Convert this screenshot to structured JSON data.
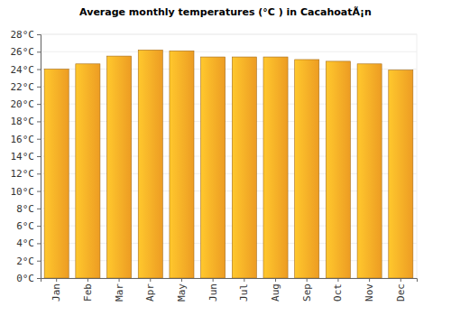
{
  "chart_data": {
    "type": "bar",
    "title": "Average monthly temperatures (°C ) in CacahoatÃ¡n",
    "categories": [
      "Jan",
      "Feb",
      "Mar",
      "Apr",
      "May",
      "Jun",
      "Jul",
      "Aug",
      "Sep",
      "Oct",
      "Nov",
      "Dec"
    ],
    "values": [
      24.0,
      24.6,
      25.5,
      26.2,
      26.1,
      25.4,
      25.4,
      25.4,
      25.1,
      24.9,
      24.6,
      23.9
    ],
    "color": "#ffa726",
    "ylim": [
      0,
      28
    ],
    "yticks": [
      {
        "value": 0,
        "label": "0°C"
      },
      {
        "value": 2,
        "label": "2°C"
      },
      {
        "value": 4,
        "label": "4°C"
      },
      {
        "value": 6,
        "label": "6°C"
      },
      {
        "value": 8,
        "label": "8°C"
      },
      {
        "value": 10,
        "label": "10°C"
      },
      {
        "value": 12,
        "label": "12°C"
      },
      {
        "value": 14,
        "label": "14°C"
      },
      {
        "value": 16,
        "label": "16°C"
      },
      {
        "value": 18,
        "label": "18°C"
      },
      {
        "value": 20,
        "label": "20°C"
      },
      {
        "value": 22,
        "label": "22°C"
      },
      {
        "value": 24,
        "label": "24°C"
      },
      {
        "value": 26,
        "label": "26°C"
      },
      {
        "value": 28,
        "label": "28°C"
      }
    ],
    "grid": true
  }
}
